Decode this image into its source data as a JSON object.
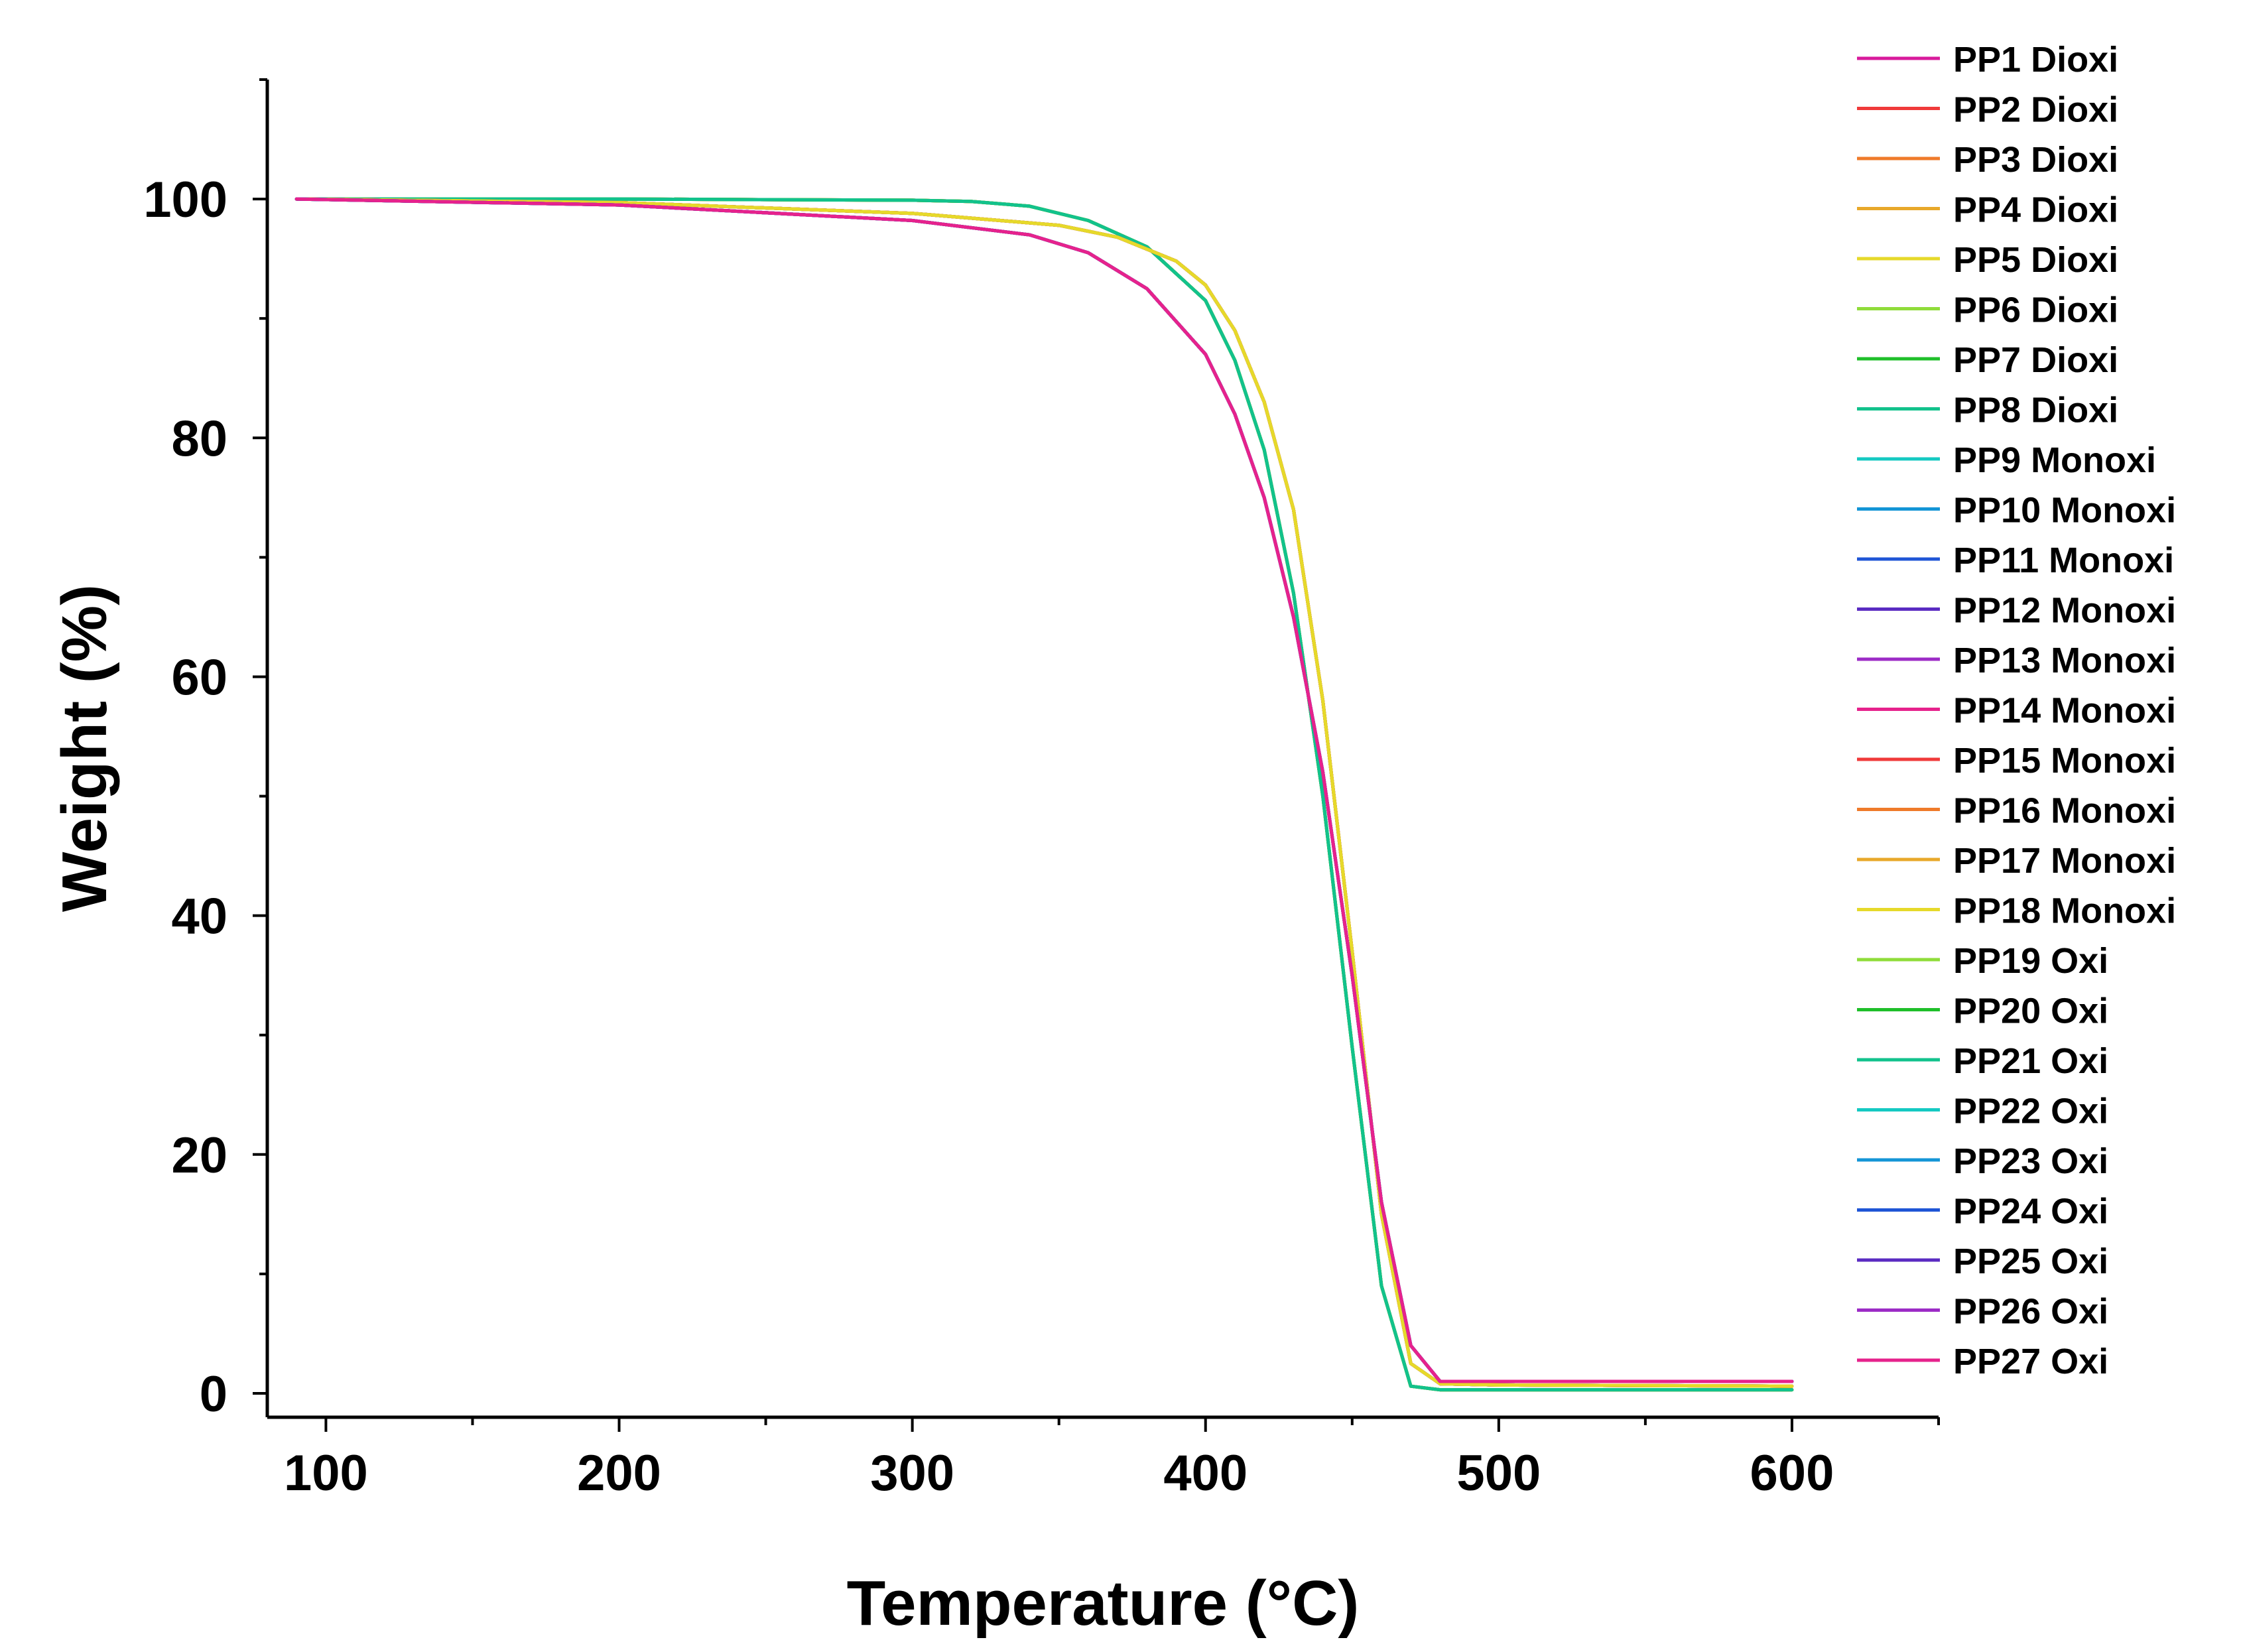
{
  "chart_data": {
    "type": "line",
    "title": "",
    "xlabel": "Temperature (°C)",
    "ylabel": "Weight (%)",
    "xlim": [
      80,
      650
    ],
    "ylim": [
      -2,
      110
    ],
    "xticks": [
      100,
      200,
      300,
      400,
      500,
      600
    ],
    "yticks": [
      0,
      20,
      40,
      60,
      80,
      100
    ],
    "x_minor_step": 50,
    "y_minor_step": 10,
    "grid": false,
    "legend_position": "right",
    "curves": {
      "dioxi": {
        "x": [
          90,
          200,
          300,
          320,
          340,
          360,
          380,
          400,
          410,
          420,
          430,
          440,
          450,
          460,
          470,
          480,
          500,
          600
        ],
        "y": [
          100,
          100,
          99.9,
          99.8,
          99.4,
          98.2,
          96,
          91.5,
          86.5,
          79,
          67,
          50,
          29,
          9,
          0.6,
          0.3,
          0.3,
          0.3
        ]
      },
      "monoxi": {
        "x": [
          90,
          200,
          300,
          350,
          370,
          390,
          400,
          410,
          420,
          430,
          440,
          450,
          460,
          470,
          480,
          500,
          600
        ],
        "y": [
          100,
          99.7,
          98.8,
          97.8,
          96.8,
          94.8,
          92.8,
          89,
          83,
          74,
          58,
          37,
          15,
          2.5,
          0.8,
          0.7,
          0.6
        ]
      },
      "oxi": {
        "x": [
          90,
          200,
          300,
          340,
          360,
          380,
          400,
          410,
          420,
          430,
          440,
          450,
          460,
          470,
          480,
          500,
          600
        ],
        "y": [
          100,
          99.5,
          98.2,
          97,
          95.5,
          92.5,
          87,
          82,
          75,
          65,
          52,
          35,
          16,
          4,
          1,
          1,
          1
        ]
      }
    },
    "series": [
      {
        "name": "PP1 Dioxi",
        "color": "#d81b9c",
        "curve": "dioxi"
      },
      {
        "name": "PP2 Dioxi",
        "color": "#f03a3a",
        "curve": "dioxi"
      },
      {
        "name": "PP3 Dioxi",
        "color": "#ef7a2a",
        "curve": "dioxi"
      },
      {
        "name": "PP4 Dioxi",
        "color": "#e8a82a",
        "curve": "dioxi"
      },
      {
        "name": "PP5 Dioxi",
        "color": "#e6d92a",
        "curve": "dioxi"
      },
      {
        "name": "PP6 Dioxi",
        "color": "#8fdc3a",
        "curve": "dioxi"
      },
      {
        "name": "PP7 Dioxi",
        "color": "#1fbf2a",
        "curve": "dioxi"
      },
      {
        "name": "PP8 Dioxi",
        "color": "#12c28c",
        "curve": "dioxi"
      },
      {
        "name": "PP9 Monoxi",
        "color": "#14c9c2",
        "curve": "monoxi"
      },
      {
        "name": "PP10 Monoxi",
        "color": "#1495d6",
        "curve": "monoxi"
      },
      {
        "name": "PP11 Monoxi",
        "color": "#1f55d6",
        "curve": "monoxi"
      },
      {
        "name": "PP12 Monoxi",
        "color": "#5a2bc2",
        "curve": "monoxi"
      },
      {
        "name": "PP13 Monoxi",
        "color": "#9c2bc6",
        "curve": "monoxi"
      },
      {
        "name": "PP14 Monoxi",
        "color": "#e6228c",
        "curve": "monoxi"
      },
      {
        "name": "PP15 Monoxi",
        "color": "#f03a3a",
        "curve": "monoxi"
      },
      {
        "name": "PP16 Monoxi",
        "color": "#ef7a2a",
        "curve": "monoxi"
      },
      {
        "name": "PP17 Monoxi",
        "color": "#e8a82a",
        "curve": "monoxi"
      },
      {
        "name": "PP18 Monoxi",
        "color": "#e6d92a",
        "curve": "monoxi"
      },
      {
        "name": "PP19 Oxi",
        "color": "#8fdc3a",
        "curve": "oxi"
      },
      {
        "name": "PP20 Oxi",
        "color": "#1fbf2a",
        "curve": "oxi"
      },
      {
        "name": "PP21 Oxi",
        "color": "#12c28c",
        "curve": "oxi"
      },
      {
        "name": "PP22 Oxi",
        "color": "#14c9c2",
        "curve": "oxi"
      },
      {
        "name": "PP23 Oxi",
        "color": "#1495d6",
        "curve": "oxi"
      },
      {
        "name": "PP24 Oxi",
        "color": "#1f55d6",
        "curve": "oxi"
      },
      {
        "name": "PP25 Oxi",
        "color": "#5a2bc2",
        "curve": "oxi"
      },
      {
        "name": "PP26 Oxi",
        "color": "#9c2bc6",
        "curve": "oxi"
      },
      {
        "name": "PP27 Oxi",
        "color": "#e6228c",
        "curve": "oxi"
      }
    ]
  }
}
